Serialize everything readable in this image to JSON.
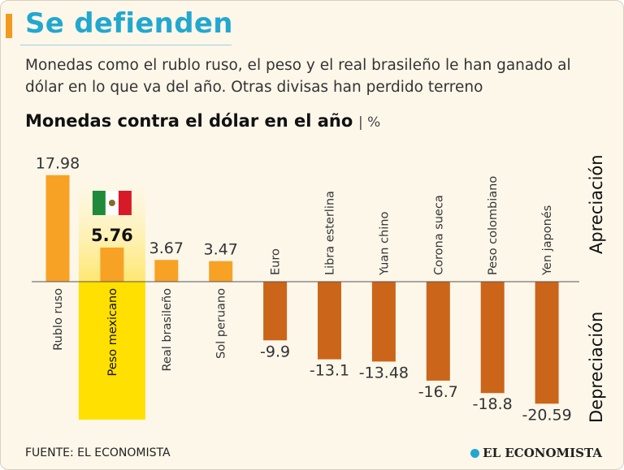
{
  "header": {
    "title": "Se defienden",
    "subtitle": "Monedas como el rublo ruso, el peso y el real brasileño le han ganado al dólar en lo que va del año. Otras divisas han perdido terreno",
    "chart_heading": "Monedas contra el dólar en el año",
    "chart_unit": "%"
  },
  "footer": {
    "source": "FUENTE: EL ECONOMISTA",
    "brand": "EL ECONOMISTA"
  },
  "colors": {
    "title": "#22a8cf",
    "positive": "#f7a224",
    "negative": "#cb6519",
    "highlight": "#ffe000",
    "accent": "#f39a1e"
  },
  "chart_data": {
    "type": "bar",
    "title": "Monedas contra el dólar en el año",
    "ylabel": "%",
    "xlabel": "",
    "ylim": [
      -22,
      20
    ],
    "positive_label": "Apreciación",
    "negative_label": "Depreciación",
    "highlight": "Peso mexicano",
    "categories": [
      "Rublo ruso",
      "Peso mexicano",
      "Real brasileño",
      "Sol peruano",
      "Euro",
      "Libra esterlina",
      "Yuan chino",
      "Corona sueca",
      "Peso colombiano",
      "Yen japonés"
    ],
    "values": [
      17.98,
      5.76,
      3.67,
      3.47,
      -9.9,
      -13.1,
      -13.48,
      -16.7,
      -18.8,
      -20.59
    ],
    "value_labels": [
      "17.98",
      "5.76",
      "3.67",
      "3.47",
      "-9.9",
      "-13.1",
      "-13.48",
      "-16.7",
      "-18.8",
      "-20.59"
    ]
  }
}
